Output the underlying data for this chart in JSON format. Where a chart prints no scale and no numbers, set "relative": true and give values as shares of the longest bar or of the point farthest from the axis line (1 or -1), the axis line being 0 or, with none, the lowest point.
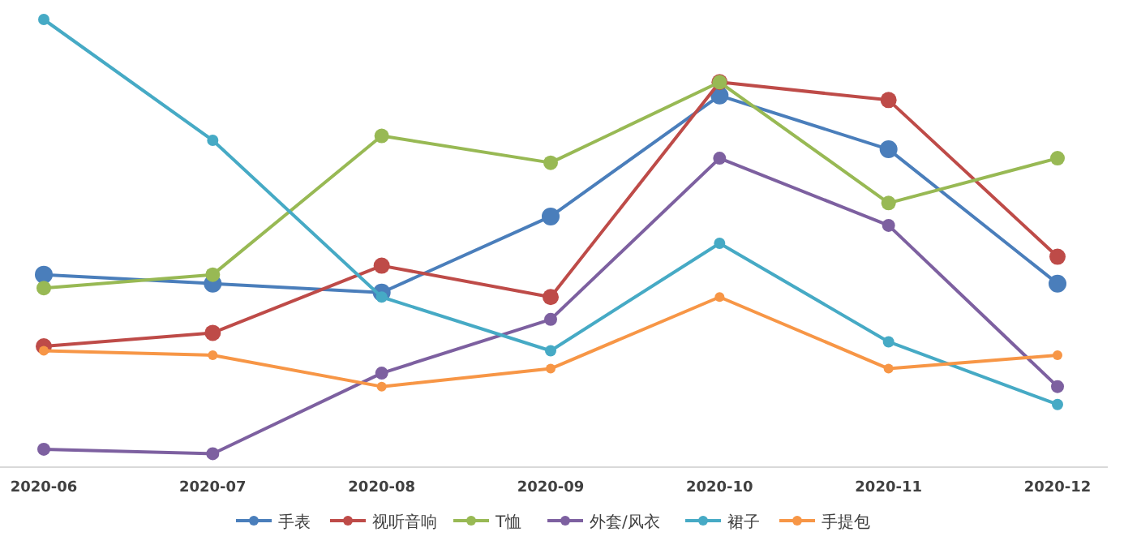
{
  "chart_data": {
    "type": "line",
    "relative": true,
    "categories": [
      "2020-06",
      "2020-07",
      "2020-08",
      "2020-09",
      "2020-10",
      "2020-11",
      "2020-12"
    ],
    "series": [
      {
        "name": "手表",
        "color": "#4a7ebb",
        "values": [
          0.43,
          0.41,
          0.39,
          0.56,
          0.83,
          0.71,
          0.41
        ]
      },
      {
        "name": "视听音响",
        "color": "#be4b48",
        "values": [
          0.27,
          0.3,
          0.45,
          0.38,
          0.86,
          0.82,
          0.47
        ]
      },
      {
        "name": "T恤",
        "color": "#98b954",
        "values": [
          0.4,
          0.43,
          0.74,
          0.68,
          0.86,
          0.59,
          0.69
        ]
      },
      {
        "name": "外套/风衣",
        "color": "#7d60a0",
        "values": [
          0.04,
          0.03,
          0.21,
          0.33,
          0.69,
          0.54,
          0.18
        ]
      },
      {
        "name": "裙子",
        "color": "#46aac5",
        "values": [
          1,
          0.73,
          0.38,
          0.26,
          0.5,
          0.28,
          0.14
        ]
      },
      {
        "name": "手提包",
        "color": "#f79646",
        "values": [
          0.26,
          0.25,
          0.18,
          0.22,
          0.38,
          0.22,
          0.25
        ]
      }
    ],
    "legend": "bottom",
    "marker": "circle"
  }
}
